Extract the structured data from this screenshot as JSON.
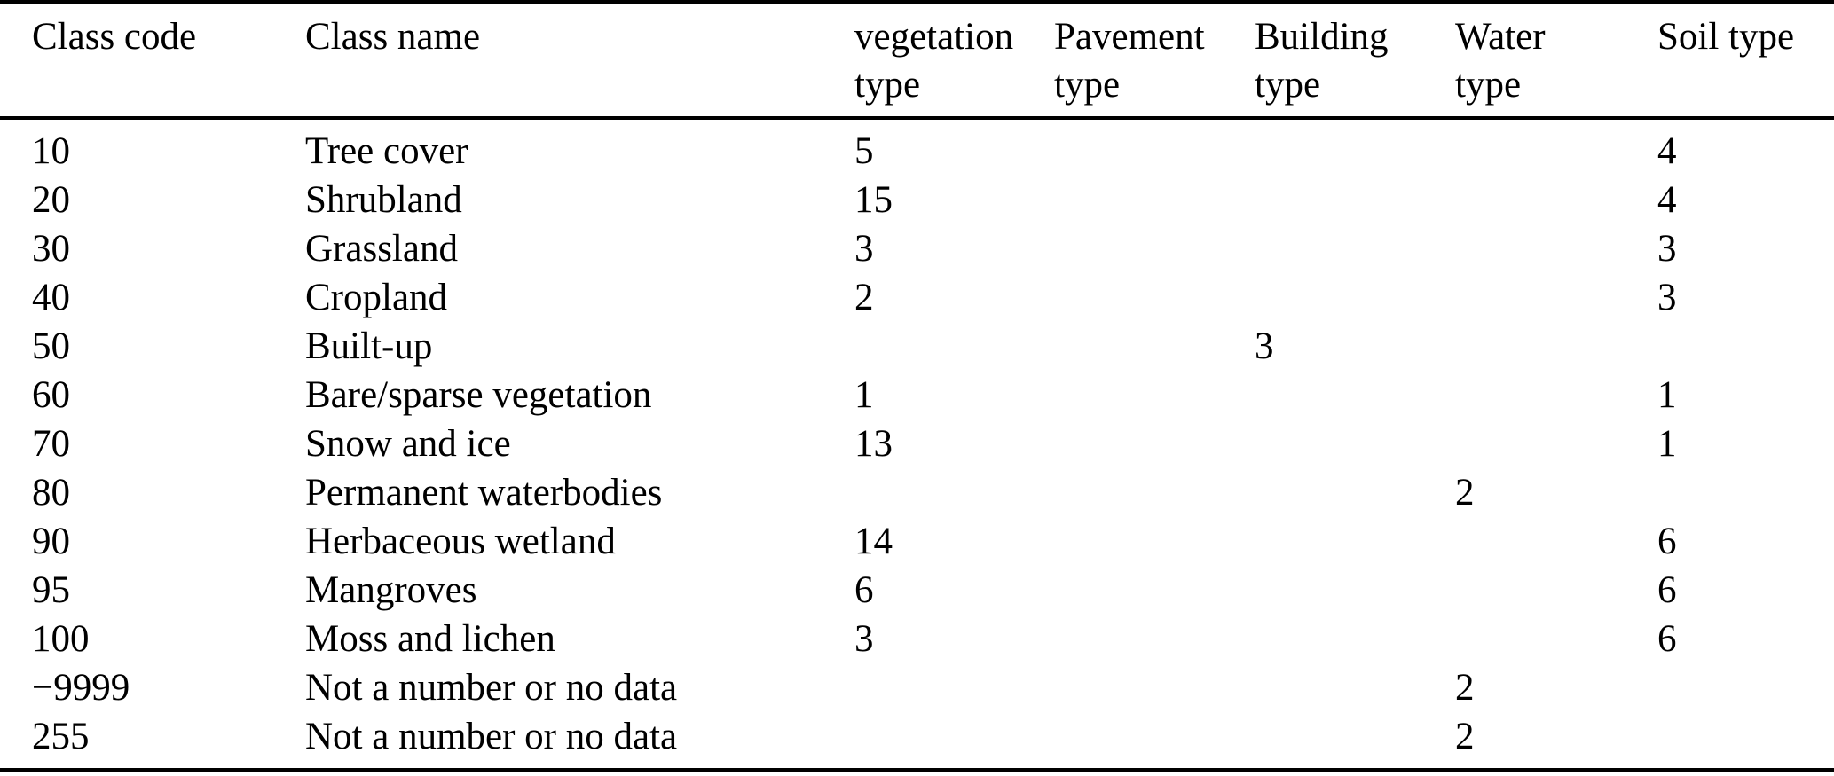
{
  "table": {
    "columns": [
      "Class code",
      "Class name",
      "vegetation\ntype",
      "Pavement\ntype",
      "Building\ntype",
      "Water\ntype",
      "Soil type"
    ],
    "fields": [
      "class_code",
      "class_name",
      "vegetation_type",
      "pavement_type",
      "building_type",
      "water_type",
      "soil_type"
    ],
    "rows": [
      {
        "class_code": "10",
        "class_name": "Tree cover",
        "vegetation_type": "5",
        "pavement_type": "",
        "building_type": "",
        "water_type": "",
        "soil_type": "4"
      },
      {
        "class_code": "20",
        "class_name": "Shrubland",
        "vegetation_type": "15",
        "pavement_type": "",
        "building_type": "",
        "water_type": "",
        "soil_type": "4"
      },
      {
        "class_code": "30",
        "class_name": "Grassland",
        "vegetation_type": "3",
        "pavement_type": "",
        "building_type": "",
        "water_type": "",
        "soil_type": "3"
      },
      {
        "class_code": "40",
        "class_name": "Cropland",
        "vegetation_type": "2",
        "pavement_type": "",
        "building_type": "",
        "water_type": "",
        "soil_type": "3"
      },
      {
        "class_code": "50",
        "class_name": "Built-up",
        "vegetation_type": "",
        "pavement_type": "",
        "building_type": "3",
        "water_type": "",
        "soil_type": ""
      },
      {
        "class_code": "60",
        "class_name": "Bare/sparse vegetation",
        "vegetation_type": "1",
        "pavement_type": "",
        "building_type": "",
        "water_type": "",
        "soil_type": "1"
      },
      {
        "class_code": "70",
        "class_name": "Snow and ice",
        "vegetation_type": "13",
        "pavement_type": "",
        "building_type": "",
        "water_type": "",
        "soil_type": "1"
      },
      {
        "class_code": "80",
        "class_name": "Permanent waterbodies",
        "vegetation_type": "",
        "pavement_type": "",
        "building_type": "",
        "water_type": "2",
        "soil_type": ""
      },
      {
        "class_code": "90",
        "class_name": "Herbaceous wetland",
        "vegetation_type": "14",
        "pavement_type": "",
        "building_type": "",
        "water_type": "",
        "soil_type": "6"
      },
      {
        "class_code": "95",
        "class_name": "Mangroves",
        "vegetation_type": "6",
        "pavement_type": "",
        "building_type": "",
        "water_type": "",
        "soil_type": "6"
      },
      {
        "class_code": "100",
        "class_name": "Moss and lichen",
        "vegetation_type": "3",
        "pavement_type": "",
        "building_type": "",
        "water_type": "",
        "soil_type": "6"
      },
      {
        "class_code": "−9999",
        "class_name": "Not a number or no data",
        "vegetation_type": "",
        "pavement_type": "",
        "building_type": "",
        "water_type": "2",
        "soil_type": ""
      },
      {
        "class_code": "255",
        "class_name": "Not a number or no data",
        "vegetation_type": "",
        "pavement_type": "",
        "building_type": "",
        "water_type": "2",
        "soil_type": ""
      }
    ],
    "colors": {
      "text": "#000000",
      "background": "#ffffff",
      "rule": "#000000"
    }
  }
}
